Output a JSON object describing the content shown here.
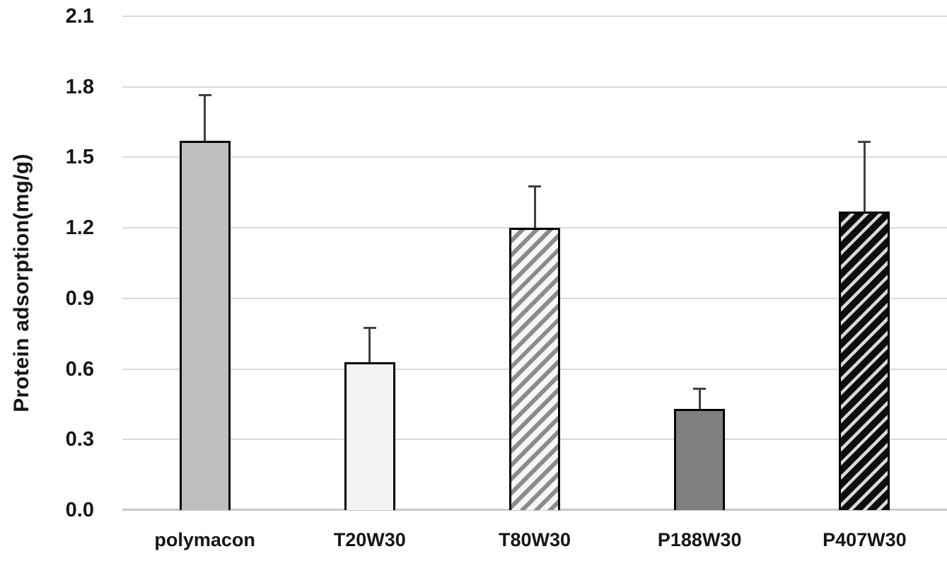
{
  "chart_data": {
    "type": "bar",
    "title": "",
    "xlabel": "",
    "ylabel": "Protein adsorption(mg/g)",
    "categories": [
      "polymacon",
      "T20W30",
      "T80W30",
      "P188W30",
      "P407W30"
    ],
    "values": [
      1.57,
      0.63,
      1.2,
      0.43,
      1.27
    ],
    "errors_plus": [
      0.2,
      0.15,
      0.18,
      0.09,
      0.3
    ],
    "ylim": [
      0,
      2.1
    ],
    "ytick_step": 0.3,
    "yticks": [
      "0.0",
      "0.3",
      "0.6",
      "0.9",
      "1.2",
      "1.5",
      "1.8",
      "2.1"
    ],
    "grid": "horizontal",
    "legend": "none",
    "bar_styles": [
      {
        "fill": "solid",
        "color": "#bfbfbf"
      },
      {
        "fill": "solid",
        "color": "#f2f2f2"
      },
      {
        "fill": "diagonal-hatch-up",
        "stripe": "#8c8c8c",
        "background": "#f6f6f6",
        "stripe_width": 6,
        "period": 14
      },
      {
        "fill": "solid",
        "color": "#7f7f7f"
      },
      {
        "fill": "diagonal-hatch-up",
        "stripe": "#d9d9d9",
        "background": "#0d0d0d",
        "stripe_width": 4.5,
        "period": 14
      }
    ],
    "colors": {
      "gridline": "#d9d9d9",
      "axis_line": "#c9c9c9",
      "bar_border": "#000000",
      "error_bar": "#404040",
      "text": "#161616"
    }
  }
}
